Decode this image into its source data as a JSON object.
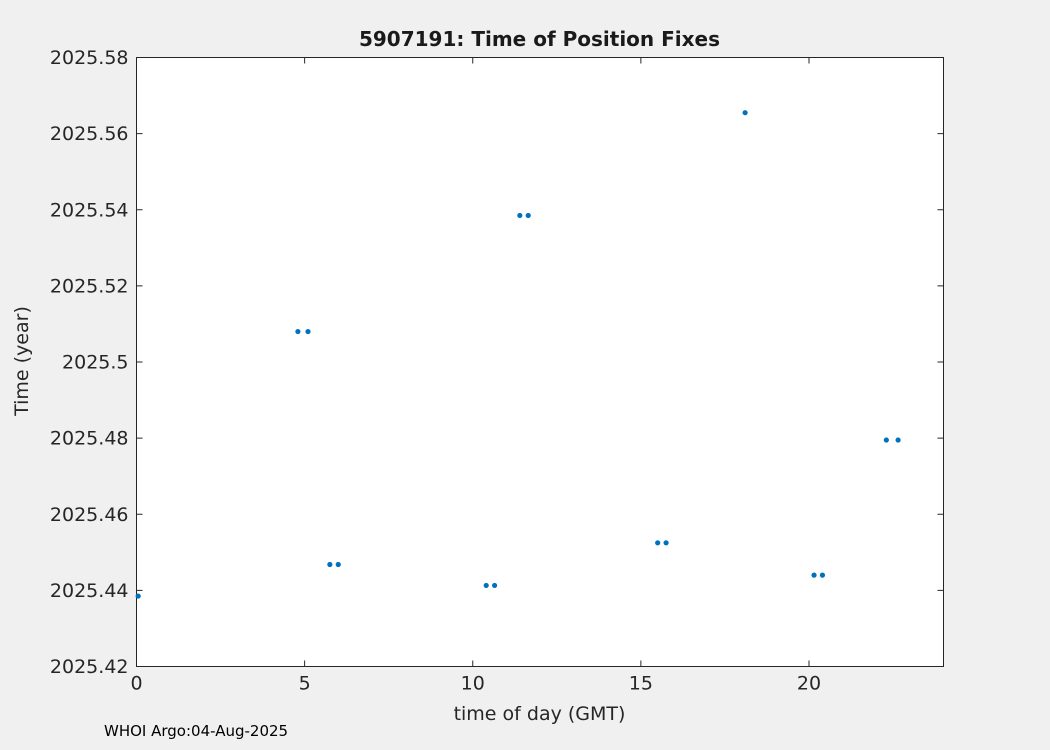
{
  "figure": {
    "background": "#f0f0f0",
    "plot_background": "#ffffff",
    "axis_color": "#262626",
    "footer": "WHOI Argo:04-Aug-2025"
  },
  "chart_data": {
    "type": "scatter",
    "title": "5907191: Time of Position Fixes",
    "xlabel": "time of day (GMT)",
    "ylabel": "Time (year)",
    "xlim": [
      0,
      24
    ],
    "ylim": [
      2025.42,
      2025.58
    ],
    "xticks": [
      0,
      5,
      10,
      15,
      20
    ],
    "xtick_labels": [
      "0",
      "5",
      "10",
      "15",
      "20"
    ],
    "yticks": [
      2025.42,
      2025.44,
      2025.46,
      2025.48,
      2025.5,
      2025.52,
      2025.54,
      2025.56,
      2025.58
    ],
    "ytick_labels": [
      "2025.42",
      "2025.44",
      "2025.46",
      "2025.48",
      "2025.5",
      "2025.52",
      "2025.54",
      "2025.56",
      "2025.58"
    ],
    "grid": false,
    "legend": null,
    "marker": "point",
    "marker_color": "#0072BD",
    "points": [
      [
        0.05,
        2025.4385
      ],
      [
        4.8,
        2025.508
      ],
      [
        5.1,
        2025.508
      ],
      [
        5.75,
        2025.4468
      ],
      [
        6.0,
        2025.4468
      ],
      [
        10.4,
        2025.4413
      ],
      [
        10.65,
        2025.4413
      ],
      [
        11.4,
        2025.5385
      ],
      [
        11.65,
        2025.5385
      ],
      [
        15.5,
        2025.4525
      ],
      [
        15.75,
        2025.4525
      ],
      [
        18.1,
        2025.5655
      ],
      [
        20.15,
        2025.444
      ],
      [
        20.4,
        2025.444
      ],
      [
        22.3,
        2025.4795
      ],
      [
        22.65,
        2025.4795
      ]
    ]
  }
}
